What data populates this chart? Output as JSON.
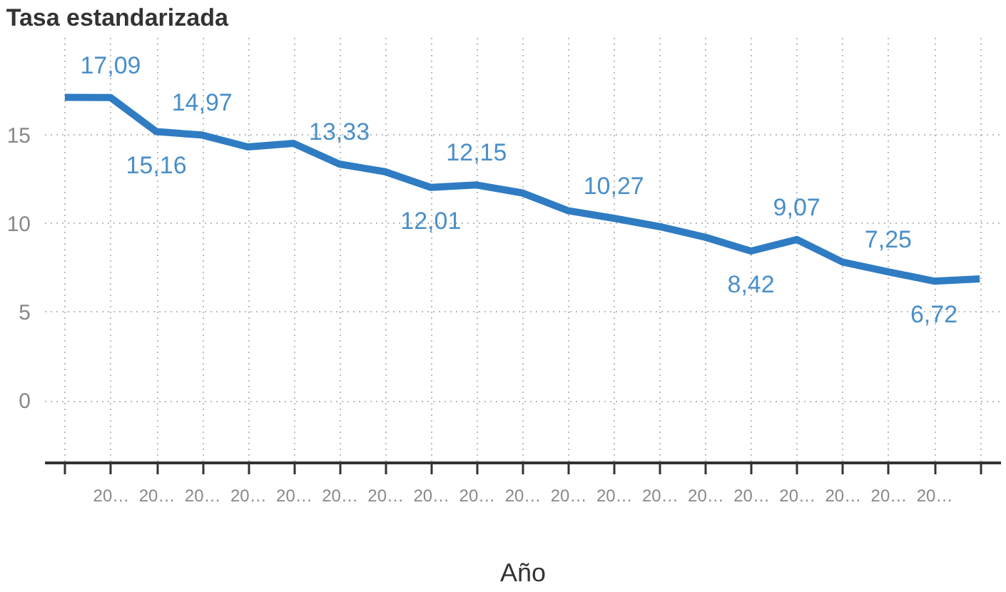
{
  "chart_data": {
    "type": "line",
    "title": "Tasa estandarizada",
    "xlabel": "Año",
    "categories": [
      null,
      "20…",
      "20…",
      "20…",
      "20…",
      "20…",
      "20…",
      "20…",
      "20…",
      "20…",
      "20…",
      "20…",
      "20…",
      "20…",
      "20…",
      "20…",
      "20…",
      "20…",
      "20…",
      "20…",
      null
    ],
    "series": [
      {
        "color": "#2f7cc3",
        "values": [
          17.1,
          17.09,
          15.16,
          14.97,
          14.3,
          14.5,
          13.33,
          12.9,
          12.01,
          12.15,
          11.7,
          10.7,
          10.27,
          9.8,
          9.2,
          8.42,
          9.07,
          7.8,
          7.25,
          6.72,
          6.85
        ],
        "value_labels": [
          null,
          "17,09",
          "15,16",
          "14,97",
          null,
          null,
          "13,33",
          null,
          "12,01",
          "12,15",
          null,
          null,
          "10,27",
          null,
          null,
          "8,42",
          "9,07",
          null,
          "7,25",
          "6,72",
          null
        ]
      }
    ],
    "ylim": [
      -3.5,
      20.5
    ],
    "yticks": [
      0,
      5,
      10,
      15
    ],
    "grid": true,
    "marker": "none",
    "line_style": "solid"
  }
}
